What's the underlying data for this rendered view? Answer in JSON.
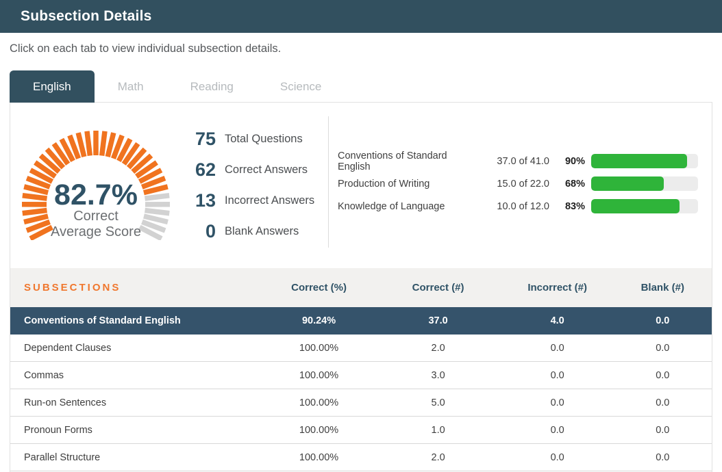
{
  "colors": {
    "dark": "#32505f",
    "row_dark": "#35536b",
    "orange": "#f0731f",
    "orange_text": "#f0772e",
    "green": "#2fb43a",
    "track": "#ececec",
    "tick_off": "#d2d2d2",
    "number_blue": "#2f5266"
  },
  "header": {
    "title": "Subsection Details"
  },
  "instruction": "Click on each tab to view individual subsection details.",
  "tabs": [
    {
      "label": "English",
      "active": true
    },
    {
      "label": "Math",
      "active": false
    },
    {
      "label": "Reading",
      "active": false
    },
    {
      "label": "Science",
      "active": false
    }
  ],
  "summary": {
    "gauge": {
      "value_label": "82.7%",
      "percent": 82.7,
      "caption_line1": "Correct",
      "caption_line2": "Average Score",
      "ticks": 35
    },
    "stats": [
      {
        "value": "75",
        "label": "Total Questions"
      },
      {
        "value": "62",
        "label": "Correct Answers"
      },
      {
        "value": "13",
        "label": "Incorrect Answers"
      },
      {
        "value": "0",
        "label": "Blank Answers"
      }
    ],
    "categories": [
      {
        "name": "Conventions of Standard English",
        "fraction": "37.0 of 41.0",
        "percent_label": "90%",
        "percent": 90
      },
      {
        "name": "Production of Writing",
        "fraction": "15.0 of 22.0",
        "percent_label": "68%",
        "percent": 68
      },
      {
        "name": "Knowledge of Language",
        "fraction": "10.0 of 12.0",
        "percent_label": "83%",
        "percent": 83
      }
    ]
  },
  "table": {
    "title": "SUBSECTIONS",
    "columns": [
      "Correct (%)",
      "Correct (#)",
      "Incorrect (#)",
      "Blank (#)"
    ],
    "rows": [
      {
        "name": "Conventions of Standard English",
        "correct_pct": "90.24%",
        "correct": "37.0",
        "incorrect": "4.0",
        "blank": "0.0",
        "highlight": true
      },
      {
        "name": "Dependent Clauses",
        "correct_pct": "100.00%",
        "correct": "2.0",
        "incorrect": "0.0",
        "blank": "0.0",
        "highlight": false
      },
      {
        "name": "Commas",
        "correct_pct": "100.00%",
        "correct": "3.0",
        "incorrect": "0.0",
        "blank": "0.0",
        "highlight": false
      },
      {
        "name": "Run-on Sentences",
        "correct_pct": "100.00%",
        "correct": "5.0",
        "incorrect": "0.0",
        "blank": "0.0",
        "highlight": false
      },
      {
        "name": "Pronoun Forms",
        "correct_pct": "100.00%",
        "correct": "1.0",
        "incorrect": "0.0",
        "blank": "0.0",
        "highlight": false
      },
      {
        "name": "Parallel Structure",
        "correct_pct": "100.00%",
        "correct": "2.0",
        "incorrect": "0.0",
        "blank": "0.0",
        "highlight": false
      }
    ]
  }
}
